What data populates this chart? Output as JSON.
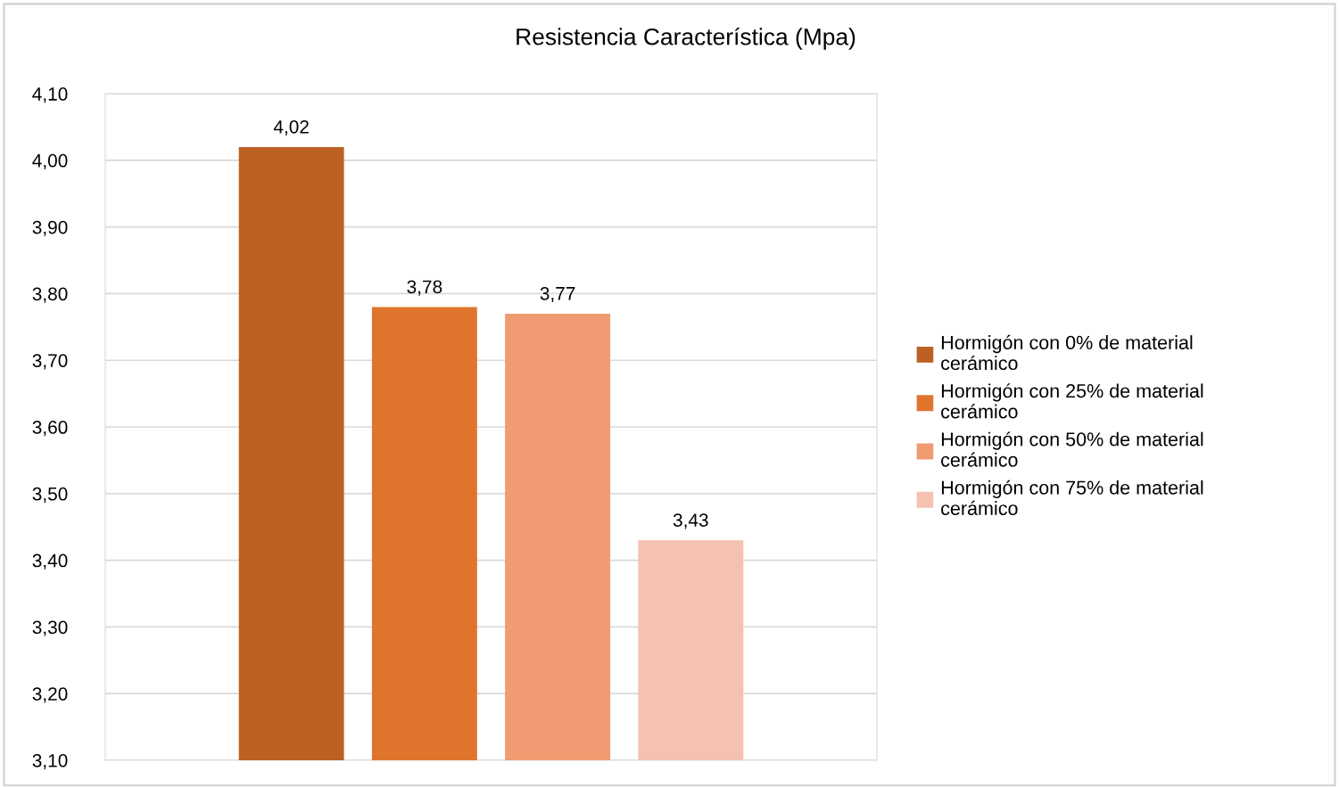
{
  "chart_data": {
    "type": "bar",
    "title": "Resistencia Característica (Mpa)",
    "categories": [
      null
    ],
    "series": [
      {
        "name": "Hormigón con 0% de material cerámico",
        "color": "#bb6123",
        "values": [
          4.02
        ],
        "value_labels": [
          "4,02"
        ]
      },
      {
        "name": "Hormigón con 25% de material cerámico",
        "color": "#df752c",
        "values": [
          3.78
        ],
        "value_labels": [
          "3,78"
        ]
      },
      {
        "name": "Hormigón con 50% de material cerámico",
        "color": "#f09b72",
        "values": [
          3.77
        ],
        "value_labels": [
          "3,77"
        ]
      },
      {
        "name": "Hormigón con 75% de material cerámico",
        "color": "#f5c1b0",
        "values": [
          3.43
        ],
        "value_labels": [
          "3,43"
        ]
      }
    ],
    "ylim": [
      3.1,
      4.1
    ],
    "yticks": [
      {
        "value": 3.1,
        "label": "3,10"
      },
      {
        "value": 3.2,
        "label": "3,20"
      },
      {
        "value": 3.3,
        "label": "3,30"
      },
      {
        "value": 3.4,
        "label": "3,40"
      },
      {
        "value": 3.5,
        "label": "3,50"
      },
      {
        "value": 3.6,
        "label": "3,60"
      },
      {
        "value": 3.7,
        "label": "3,70"
      },
      {
        "value": 3.8,
        "label": "3,80"
      },
      {
        "value": 3.9,
        "label": "3,90"
      },
      {
        "value": 4.0,
        "label": "4,00"
      },
      {
        "value": 4.1,
        "label": "4,10"
      }
    ],
    "grid": "y",
    "legend": "right"
  }
}
